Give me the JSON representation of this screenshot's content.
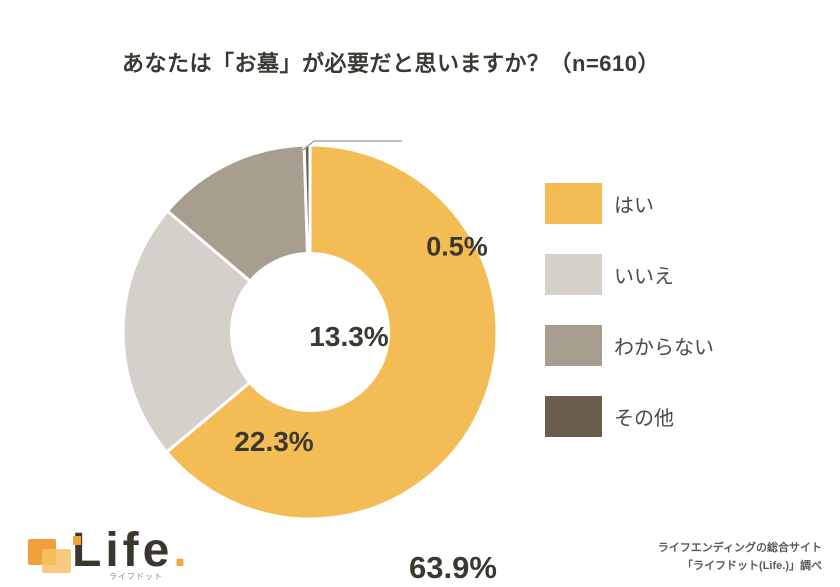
{
  "title": "あなたは「お墓」が必要だと思いますか？（n=610）",
  "chart_data": {
    "type": "pie",
    "subtype": "donut",
    "title": "あなたは「お墓」が必要だと思いますか？",
    "sample_size": 610,
    "categories": [
      "はい",
      "いいえ",
      "わからない",
      "その他"
    ],
    "values": [
      63.9,
      22.3,
      13.3,
      0.5
    ],
    "unit": "%",
    "labels": [
      "63.9%",
      "22.3%",
      "13.3%",
      "0.5%"
    ],
    "colors": [
      "#F4BC55",
      "#D5D0C9",
      "#A89E90",
      "#6A5D4B"
    ],
    "start_angle_deg": 0,
    "direction": "clockwise",
    "donut_hole_ratio": 0.42,
    "legend_position": "right",
    "separator_color": "#FFFFFF"
  },
  "legend": {
    "items": [
      {
        "label": "はい",
        "color": "#F4BC55"
      },
      {
        "label": "いいえ",
        "color": "#D5D0C9"
      },
      {
        "label": "わからない",
        "color": "#A89E90"
      },
      {
        "label": "その他",
        "color": "#6A5D4B"
      }
    ]
  },
  "logo": {
    "brand": "Life",
    "brand_dot": ".",
    "subtitle": "ライフドット"
  },
  "footer": {
    "line1": "ライフエンディングの総合サイト",
    "line2": "「ライフドット(Life.)」調べ"
  }
}
